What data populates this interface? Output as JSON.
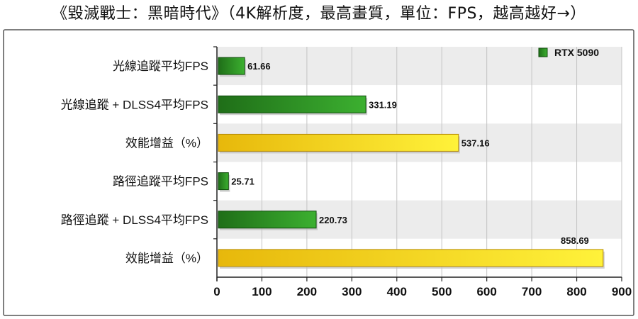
{
  "title": "《毀滅戰士：黑暗時代》（4K解析度，最高畫質，單位：FPS，越高越好→）",
  "chart_data": {
    "type": "bar",
    "orientation": "horizontal",
    "title": "《毀滅戰士：黑暗時代》（4K解析度，最高畫質，單位：FPS，越高越好→）",
    "categories": [
      "光線追蹤平均FPS",
      "光線追蹤 + DLSS4平均FPS",
      "效能增益（%）",
      "路徑追蹤平均FPS",
      "路徑追蹤 + DLSS4平均FPS",
      "效能增益（%）"
    ],
    "values": [
      61.66,
      331.19,
      537.16,
      25.71,
      220.73,
      858.69
    ],
    "value_labels": [
      "61.66",
      "331.19",
      "537.16",
      "25.71",
      "220.73",
      "858.69"
    ],
    "bar_kinds": [
      "fps",
      "fps",
      "gain",
      "fps",
      "fps",
      "gain"
    ],
    "series": [
      {
        "name": "RTX 5090"
      }
    ],
    "legend_position": "top-right",
    "xlim": [
      0,
      900
    ],
    "xticks": [
      0,
      100,
      200,
      300,
      400,
      500,
      600,
      700,
      800,
      900
    ],
    "xtick_labels": [
      "0",
      "100",
      "200",
      "300",
      "400",
      "500",
      "600",
      "700",
      "800",
      "900"
    ],
    "grid": true,
    "colors": {
      "fps_dark": "#1f6e18",
      "fps_light": "#3cb030",
      "gain_dark": "#e7b80b",
      "gain_light": "#fff23a",
      "grid": "#c4c4c4",
      "plot_bg_alt": "#ececec"
    }
  }
}
